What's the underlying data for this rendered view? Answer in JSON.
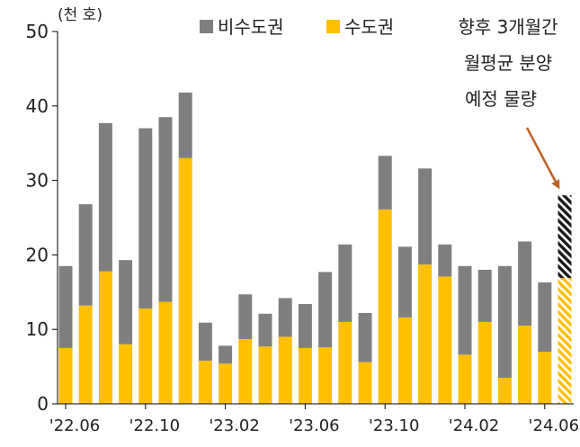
{
  "chart_data": {
    "type": "bar",
    "stacked": true,
    "unit_label": "(천 호)",
    "ylim": [
      0,
      50
    ],
    "yticks": [
      0,
      10,
      20,
      30,
      40,
      50
    ],
    "grid": false,
    "legend_position": "top-center",
    "x_tick_labels": [
      "'22.06",
      "'22.10",
      "'23.02",
      "'23.06",
      "'23.10",
      "'24.02",
      "'24.06"
    ],
    "categories": [
      "'22.06",
      "'22.07",
      "'22.08",
      "'22.09",
      "'22.10",
      "'22.11",
      "'22.12",
      "'23.01",
      "'23.02",
      "'23.03",
      "'23.04",
      "'23.05",
      "'23.06",
      "'23.07",
      "'23.08",
      "'23.09",
      "'23.10",
      "'23.11",
      "'23.12",
      "'24.01",
      "'24.02",
      "'24.03",
      "'24.04",
      "'24.05",
      "'24.06"
    ],
    "series": [
      {
        "name": "수도권",
        "color": "#ffc000",
        "values": [
          7.5,
          13.2,
          17.8,
          8.0,
          12.8,
          13.7,
          33.0,
          5.8,
          5.4,
          8.7,
          7.7,
          9.0,
          7.5,
          7.6,
          11.0,
          5.6,
          26.1,
          11.6,
          18.7,
          17.1,
          6.6,
          11.0,
          3.5,
          10.5,
          7.0
        ]
      },
      {
        "name": "비수도권",
        "color": "#7f7f7f",
        "values": [
          11.0,
          13.6,
          19.9,
          11.3,
          24.2,
          24.8,
          8.8,
          5.1,
          2.4,
          6.0,
          4.4,
          5.2,
          5.9,
          10.1,
          10.4,
          6.6,
          7.2,
          9.5,
          12.9,
          4.3,
          11.9,
          7.0,
          15.0,
          11.3,
          9.3
        ]
      }
    ],
    "forecast": {
      "label_lines": [
        "향후 3개월간",
        "월평균 분양",
        "예정 물량"
      ],
      "수도권": 16.9,
      "비수도권": 11.1
    }
  }
}
